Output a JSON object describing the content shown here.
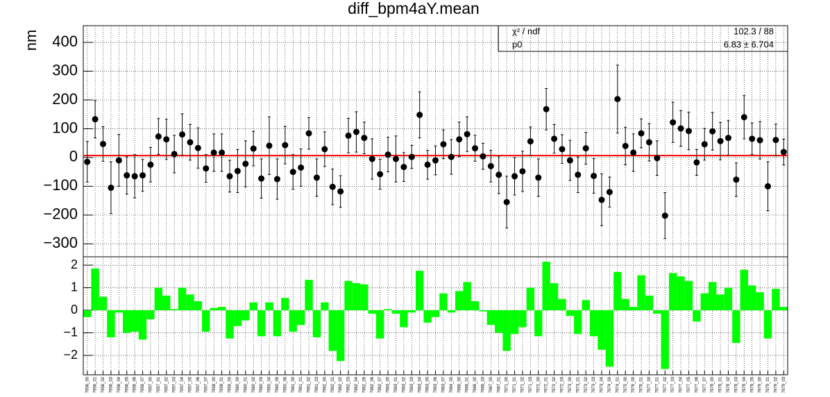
{
  "chart_data": [
    {
      "type": "errorbar",
      "title": "diff_bpm4aY.mean",
      "y_label": "nm",
      "values": [
        -15,
        133,
        47,
        -105,
        -10,
        -62,
        -65,
        -62,
        -25,
        73,
        63,
        12,
        80,
        53,
        33,
        -38,
        17,
        17,
        -65,
        -47,
        -22,
        31,
        -73,
        41,
        -75,
        43,
        -50,
        -35,
        84,
        -70,
        29,
        -102,
        -118,
        76,
        89,
        68,
        -5,
        -58,
        10,
        -5,
        -33,
        2,
        148,
        -25,
        -10,
        46,
        2,
        63,
        81,
        32,
        4,
        -30,
        -60,
        -155,
        -65,
        -48,
        56,
        -70,
        168,
        65,
        29,
        -10,
        -60,
        32,
        -64,
        -147,
        -120,
        203,
        40,
        17,
        84,
        53,
        -2,
        -202,
        122,
        101,
        92,
        -17,
        46,
        91,
        57,
        68,
        -77,
        140,
        65,
        60,
        -100,
        61,
        19
      ],
      "errors": [
        70,
        65,
        60,
        90,
        90,
        65,
        75,
        55,
        60,
        62,
        70,
        65,
        72,
        62,
        70,
        48,
        65,
        65,
        55,
        75,
        80,
        60,
        68,
        100,
        70,
        65,
        60,
        65,
        55,
        65,
        60,
        62,
        55,
        60,
        70,
        55,
        70,
        52,
        60,
        80,
        50,
        40,
        80,
        50,
        50,
        50,
        60,
        60,
        60,
        45,
        45,
        55,
        65,
        90,
        65,
        70,
        50,
        65,
        72,
        50,
        50,
        70,
        62,
        55,
        60,
        90,
        52,
        118,
        65,
        65,
        50,
        65,
        60,
        80,
        70,
        62,
        65,
        45,
        55,
        65,
        65,
        60,
        58,
        75,
        55,
        65,
        85,
        55,
        45
      ],
      "color": "#000000",
      "fit": {
        "value": 6.83,
        "label": "6.83 ± 6.704",
        "color": "#ff0000"
      },
      "stats": [
        {
          "name": "χ² / ndf",
          "value": "102.3 / 88"
        },
        {
          "name": "p0"
        }
      ],
      "ylim": [
        -345,
        458
      ],
      "yticks": [
        {
          "value": -300,
          "label": "−300"
        },
        {
          "value": -200,
          "label": "−200"
        },
        {
          "value": -100,
          "label": "−100"
        },
        0,
        100,
        200,
        300,
        400
      ],
      "grid": true
    },
    {
      "type": "bar",
      "categories": [
        "7956_00",
        "7956_01",
        "7956_02",
        "7956_03",
        "7956_04",
        "7956_05",
        "7956_06",
        "7956_07",
        "7957_00",
        "7957_01",
        "7957_02",
        "7957_03",
        "7957_04",
        "7957_05",
        "7957_06",
        "7957_07",
        "7958_00",
        "7958_01",
        "7959_00",
        "7960_00",
        "7960_01",
        "7960_02",
        "7960_03",
        "7960_04",
        "7960_05",
        "7960_06",
        "7961_00",
        "7961_01",
        "7961_02",
        "7961_03",
        "7962_00",
        "7962_01",
        "7962_02",
        "7962_03",
        "7962_04",
        "7962_05",
        "7962_06",
        "7962_07",
        "7963_00",
        "7963_01",
        "7963_02",
        "7963_03",
        "7963_04",
        "7963_05",
        "7963_06",
        "7963_07",
        "7964_00",
        "7966_00",
        "7966_01",
        "7966_02",
        "7966_03",
        "7967_00",
        "7967_01",
        "7971_00",
        "7971_01",
        "7971_02",
        "7971_03",
        "7972_00",
        "7972_01",
        "7972_02",
        "7972_03",
        "7973_00",
        "7973_01",
        "7973_02",
        "7973_03",
        "7973_04",
        "7974_00",
        "7974_01",
        "7975_00",
        "7976_00",
        "7976_01",
        "7977_00",
        "7977_01",
        "7977_02",
        "7977_03",
        "7977_04",
        "7977_05",
        "7977_06",
        "7977_07",
        "7978_00",
        "7978_01",
        "7978_02",
        "7978_03",
        "7978_04",
        "7978_05",
        "7979_00",
        "7979_01",
        "7979_02",
        "7979_03"
      ],
      "values": [
        -0.3,
        1.85,
        0.6,
        -1.2,
        -0.1,
        -1.0,
        -0.95,
        -1.3,
        -0.4,
        1.0,
        0.65,
        0.05,
        1.0,
        0.7,
        0.4,
        -0.95,
        0.1,
        0.15,
        -1.25,
        -0.7,
        -0.45,
        0.35,
        -1.15,
        0.35,
        -1.15,
        0.55,
        -0.95,
        -0.65,
        1.35,
        -1.2,
        0.35,
        -1.8,
        -2.25,
        1.3,
        1.2,
        1.15,
        -0.15,
        -1.25,
        0.05,
        -0.15,
        -0.75,
        -0.1,
        1.75,
        -0.55,
        -0.3,
        0.75,
        -0.1,
        0.85,
        1.25,
        0.4,
        -0.05,
        -0.65,
        -1.0,
        -1.8,
        -1.05,
        -0.75,
        1.0,
        -1.15,
        2.15,
        1.2,
        0.5,
        -0.25,
        -1.05,
        0.45,
        -1.15,
        -1.75,
        -2.5,
        1.7,
        0.5,
        0.15,
        1.55,
        0.65,
        -0.15,
        -2.6,
        1.65,
        1.5,
        1.3,
        -0.5,
        0.75,
        1.25,
        0.7,
        1.0,
        -1.45,
        1.8,
        1.1,
        0.8,
        -1.25,
        0.95,
        0.15
      ],
      "color": "#00ff00",
      "ylim": [
        -2.86,
        2.37
      ],
      "yticks": [
        {
          "value": -2,
          "label": "−2"
        },
        {
          "value": -1,
          "label": "−1"
        },
        0,
        1,
        2
      ],
      "grid": true
    }
  ]
}
